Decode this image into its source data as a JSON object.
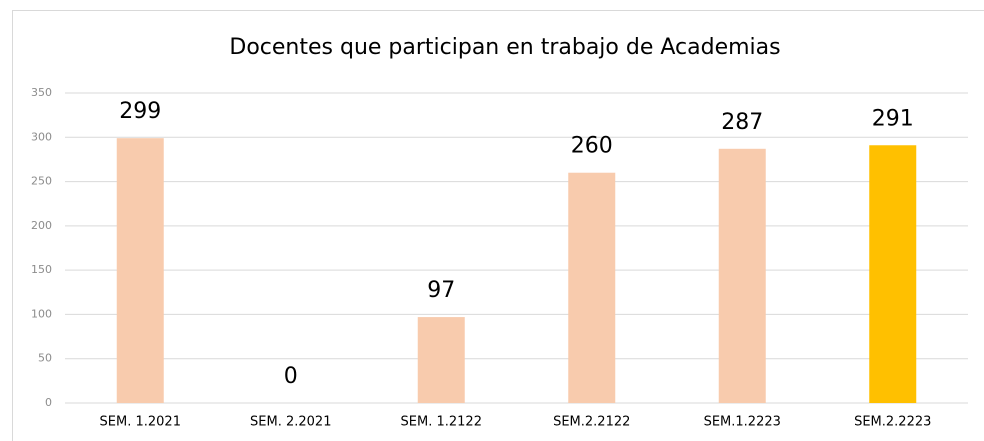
{
  "chart_data": {
    "type": "bar",
    "title": "Docentes que participan en trabajo de Academias",
    "categories": [
      "SEM. 1.2021",
      "SEM. 2.2021",
      "SEM. 1.2122",
      "SEM.2.2122",
      "SEM.1.2223",
      "SEM.2.2223"
    ],
    "values": [
      299,
      0,
      97,
      260,
      287,
      291
    ],
    "colors": [
      "#f8cbad",
      "#f8cbad",
      "#f8cbad",
      "#f8cbad",
      "#f8cbad",
      "#ffc000"
    ],
    "ylim": [
      0,
      350
    ],
    "yticks": [
      0,
      50,
      100,
      150,
      200,
      250,
      300,
      350
    ],
    "grid": true
  }
}
